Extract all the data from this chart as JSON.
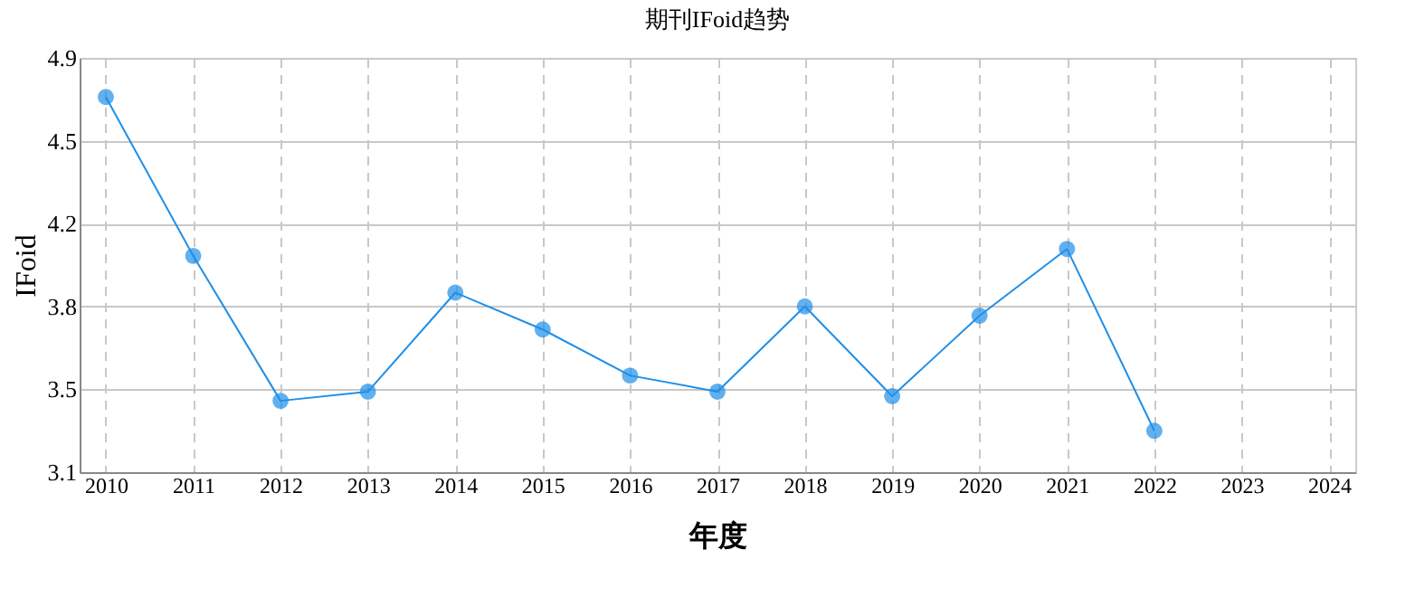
{
  "chart_data": {
    "type": "line",
    "title": "期刊IFoid趋势",
    "xlabel": "年度",
    "ylabel": "IFoid",
    "categories": [
      "2010",
      "2011",
      "2012",
      "2013",
      "2014",
      "2015",
      "2016",
      "2017",
      "2018",
      "2019",
      "2020",
      "2021",
      "2022",
      "2023",
      "2024"
    ],
    "series": [
      {
        "color": "#1e8fe8",
        "values": [
          4.73,
          4.04,
          3.41,
          3.45,
          3.88,
          3.72,
          3.52,
          3.45,
          3.82,
          3.43,
          3.78,
          4.07,
          3.28,
          null,
          null
        ]
      }
    ],
    "ylim": [
      3.1,
      4.9
    ],
    "yticks": [
      3.1,
      {
        "value": 3.46,
        "label": "3.5"
      },
      {
        "value": 3.82,
        "label": "3.8"
      },
      {
        "value": 4.18,
        "label": "4.2"
      },
      {
        "value": 4.54,
        "label": "4.5"
      },
      4.9
    ],
    "grid": true,
    "marker": "circle",
    "line_style": "solid"
  }
}
